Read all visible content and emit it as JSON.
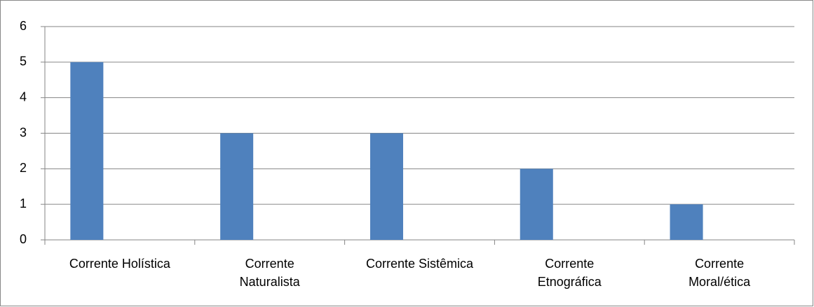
{
  "chart_data": {
    "type": "bar",
    "categories": [
      "Corrente Holística",
      "Corrente\nNaturalista",
      "Corrente Sistêmica",
      "Corrente\nEtnográfica",
      "Corrente\nMoral/ética"
    ],
    "values": [
      5,
      3,
      3,
      2,
      1
    ],
    "color": "#4f81bd",
    "ylim": [
      0,
      6
    ],
    "yticks": [
      0,
      1,
      2,
      3,
      4,
      5,
      6
    ],
    "grid": true
  }
}
